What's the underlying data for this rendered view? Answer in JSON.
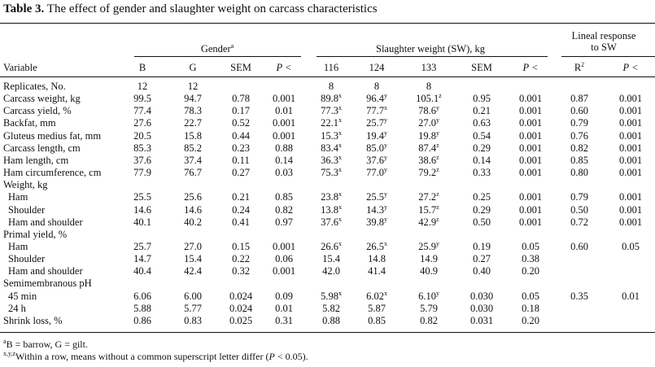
{
  "title_label": "Table 3.",
  "title_text": "The effect of gender and slaughter weight on carcass characteristics",
  "groups": {
    "gender": "Gender",
    "gender_sup": "a",
    "sw": "Slaughter weight (SW), kg",
    "lineal_1": "Lineal response",
    "lineal_2": "to SW"
  },
  "columns": [
    "B",
    "G",
    "SEM",
    "P <",
    "116",
    "124",
    "133",
    "SEM",
    "P <",
    "R",
    "P <"
  ],
  "columns_sup": {
    "9": "2"
  },
  "columns_italic": [
    3,
    8,
    10
  ],
  "variable_header": "Variable",
  "rows": [
    {
      "label": "Replicates, No.",
      "indent": false,
      "cells": [
        "12",
        "12",
        "",
        "",
        "8",
        "8",
        "8",
        "",
        "",
        "",
        ""
      ]
    },
    {
      "label": "Carcass weight, kg",
      "indent": false,
      "cells": [
        "99.5",
        "94.7",
        "0.78",
        "0.001",
        "89.8",
        "96.4",
        "105.1",
        "0.95",
        "0.001",
        "0.87",
        "0.001"
      ],
      "sups": {
        "4": "x",
        "5": "y",
        "6": "z"
      }
    },
    {
      "label": "Carcass yield, %",
      "indent": false,
      "cells": [
        "77.4",
        "78.3",
        "0.17",
        "0.01",
        "77.3",
        "77.7",
        "78.6",
        "0.21",
        "0.001",
        "0.60",
        "0.001"
      ],
      "sups": {
        "4": "x",
        "5": "x",
        "6": "y"
      }
    },
    {
      "label": "Backfat, mm",
      "indent": false,
      "cells": [
        "27.6",
        "22.7",
        "0.52",
        "0.001",
        "22.1",
        "25.7",
        "27.0",
        "0.63",
        "0.001",
        "0.79",
        "0.001"
      ],
      "sups": {
        "4": "x",
        "5": "y",
        "6": "y"
      }
    },
    {
      "label": "Gluteus medius fat, mm",
      "indent": false,
      "cells": [
        "20.5",
        "15.8",
        "0.44",
        "0.001",
        "15.3",
        "19.4",
        "19.8",
        "0.54",
        "0.001",
        "0.76",
        "0.001"
      ],
      "sups": {
        "4": "x",
        "5": "y",
        "6": "y"
      }
    },
    {
      "label": "Carcass length, cm",
      "indent": false,
      "cells": [
        "85.3",
        "85.2",
        "0.23",
        "0.88",
        "83.4",
        "85.0",
        "87.4",
        "0.29",
        "0.001",
        "0.82",
        "0.001"
      ],
      "sups": {
        "4": "x",
        "5": "y",
        "6": "z"
      }
    },
    {
      "label": "Ham length, cm",
      "indent": false,
      "cells": [
        "37.6",
        "37.4",
        "0.11",
        "0.14",
        "36.3",
        "37.6",
        "38.6",
        "0.14",
        "0.001",
        "0.85",
        "0.001"
      ],
      "sups": {
        "4": "x",
        "5": "y",
        "6": "z"
      }
    },
    {
      "label": "Ham circumference, cm",
      "indent": false,
      "cells": [
        "77.9",
        "76.7",
        "0.27",
        "0.03",
        "75.3",
        "77.0",
        "79.2",
        "0.33",
        "0.001",
        "0.80",
        "0.001"
      ],
      "sups": {
        "4": "x",
        "5": "y",
        "6": "z"
      }
    },
    {
      "label": "Weight, kg",
      "indent": false,
      "cells": [
        "",
        "",
        "",
        "",
        "",
        "",
        "",
        "",
        "",
        "",
        ""
      ]
    },
    {
      "label": "Ham",
      "indent": true,
      "cells": [
        "25.5",
        "25.6",
        "0.21",
        "0.85",
        "23.8",
        "25.5",
        "27.2",
        "0.25",
        "0.001",
        "0.79",
        "0.001"
      ],
      "sups": {
        "4": "x",
        "5": "y",
        "6": "z"
      }
    },
    {
      "label": "Shoulder",
      "indent": true,
      "cells": [
        "14.6",
        "14.6",
        "0.24",
        "0.82",
        "13.8",
        "14.3",
        "15.7",
        "0.29",
        "0.001",
        "0.50",
        "0.001"
      ],
      "sups": {
        "4": "x",
        "5": "y",
        "6": "z"
      }
    },
    {
      "label": "Ham and shoulder",
      "indent": true,
      "cells": [
        "40.1",
        "40.2",
        "0.41",
        "0.97",
        "37.6",
        "39.8",
        "42.9",
        "0.50",
        "0.001",
        "0.72",
        "0.001"
      ],
      "sups": {
        "4": "x",
        "5": "y",
        "6": "z"
      }
    },
    {
      "label": "Primal yield, %",
      "indent": false,
      "cells": [
        "",
        "",
        "",
        "",
        "",
        "",
        "",
        "",
        "",
        "",
        ""
      ]
    },
    {
      "label": "Ham",
      "indent": true,
      "cells": [
        "25.7",
        "27.0",
        "0.15",
        "0.001",
        "26.6",
        "26.5",
        "25.9",
        "0.19",
        "0.05",
        "0.60",
        "0.05"
      ],
      "sups": {
        "4": "x",
        "5": "x",
        "6": "y"
      }
    },
    {
      "label": "Shoulder",
      "indent": true,
      "cells": [
        "14.7",
        "15.4",
        "0.22",
        "0.06",
        "15.4",
        "14.8",
        "14.9",
        "0.27",
        "0.38",
        "",
        ""
      ]
    },
    {
      "label": "Ham and shoulder",
      "indent": true,
      "cells": [
        "40.4",
        "42.4",
        "0.32",
        "0.001",
        "42.0",
        "41.4",
        "40.9",
        "0.40",
        "0.20",
        "",
        ""
      ]
    },
    {
      "label": "Semimembranous pH",
      "indent": false,
      "cells": [
        "",
        "",
        "",
        "",
        "",
        "",
        "",
        "",
        "",
        "",
        ""
      ]
    },
    {
      "label": "45 min",
      "indent": true,
      "cells": [
        "6.06",
        "6.00",
        "0.024",
        "0.09",
        "5.98",
        "6.02",
        "6.10",
        "0.030",
        "0.05",
        "0.35",
        "0.01"
      ],
      "sups": {
        "4": "x",
        "5": "x",
        "6": "y"
      }
    },
    {
      "label": "24 h",
      "indent": true,
      "cells": [
        "5.88",
        "5.77",
        "0.024",
        "0.01",
        "5.82",
        "5.87",
        "5.79",
        "0.030",
        "0.18",
        "",
        ""
      ]
    },
    {
      "label": "Shrink loss, %",
      "indent": false,
      "cells": [
        "0.86",
        "0.83",
        "0.025",
        "0.31",
        "0.88",
        "0.85",
        "0.82",
        "0.031",
        "0.20",
        "",
        ""
      ]
    }
  ],
  "footnotes": {
    "a_sup": "a",
    "a_text": "B = barrow, G = gilt.",
    "b_sup": "x,y,z",
    "b_text_1": "Within a row, means without a common superscript letter differ (",
    "b_text_p": "P",
    "b_text_2": " < 0.05)."
  }
}
